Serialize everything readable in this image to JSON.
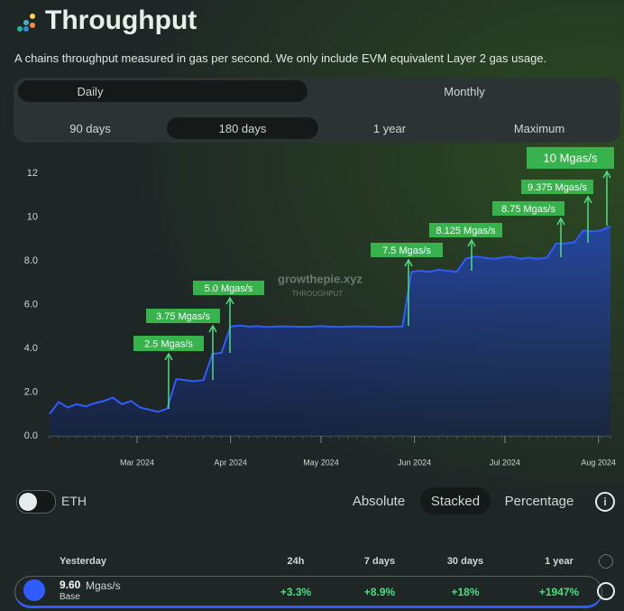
{
  "header": {
    "title": "Throughput",
    "subtitle": "A chains throughput measured in gas per second. We only include EVM equivalent Layer 2 gas usage."
  },
  "tabs": {
    "interval": [
      "Daily",
      "Monthly"
    ],
    "range": [
      "90 days",
      "180 days",
      "1 year",
      "Maximum"
    ]
  },
  "watermark": {
    "brand": "growthepie.xyz",
    "label": "THROUGHPUT"
  },
  "chart_data": {
    "type": "area",
    "color": "#2f5cff",
    "values": [
      1.0,
      1.55,
      1.3,
      1.45,
      1.35,
      1.5,
      1.6,
      1.75,
      1.45,
      1.6,
      1.3,
      1.2,
      1.1,
      1.25,
      2.6,
      2.55,
      2.5,
      2.55,
      3.75,
      3.8,
      5.0,
      5.05,
      5.0,
      5.02,
      4.98,
      5.0,
      5.01,
      5.0,
      4.99,
      5.0,
      5.02,
      5.0,
      4.99,
      5.0,
      5.01,
      5.0,
      5.0,
      4.98,
      5.0,
      5.0,
      7.5,
      7.55,
      7.5,
      7.6,
      7.55,
      7.5,
      8.1,
      8.2,
      8.15,
      8.1,
      8.15,
      8.2,
      8.1,
      8.15,
      8.1,
      8.15,
      8.8,
      8.8,
      8.85,
      9.4,
      9.35,
      9.4,
      9.6
    ],
    "xlim": [
      0,
      62
    ],
    "ylim": [
      0,
      13
    ],
    "xticks": [
      {
        "value": 9.67,
        "label": "Mar 2024"
      },
      {
        "value": 20,
        "label": "Apr 2024"
      },
      {
        "value": 30,
        "label": "May 2024"
      },
      {
        "value": 40.33,
        "label": "Jun 2024"
      },
      {
        "value": 50.33,
        "label": "Jul 2024"
      },
      {
        "value": 60.67,
        "label": "Aug 2024"
      }
    ],
    "yticks": [
      {
        "value": 0,
        "label": "0.0"
      },
      {
        "value": 2,
        "label": "2.0"
      },
      {
        "value": 4,
        "label": "4.0"
      },
      {
        "value": 6,
        "label": "6.0"
      },
      {
        "value": 8,
        "label": "8.0"
      },
      10,
      12
    ],
    "annotations": [
      "2.5 Mgas/s",
      "3.75 Mgas/s",
      "5.0 Mgas/s",
      "7.5 Mgas/s",
      "8.125 Mgas/s",
      "8.75 Mgas/s",
      "9.375 Mgas/s",
      "10 Mgas/s"
    ]
  },
  "controls": {
    "toggle": "ETH",
    "modes": [
      "Absolute",
      "Stacked",
      "Percentage"
    ]
  },
  "table": {
    "headers": [
      "Yesterday",
      "24h",
      "7 days",
      "30 days",
      "1 year"
    ],
    "rows": [
      {
        "value": "9.60",
        "unit": "Mgas/s",
        "name": "Base",
        "changes": [
          "+3.3%",
          "+8.9%",
          "+18%",
          "+1947%"
        ]
      }
    ]
  }
}
